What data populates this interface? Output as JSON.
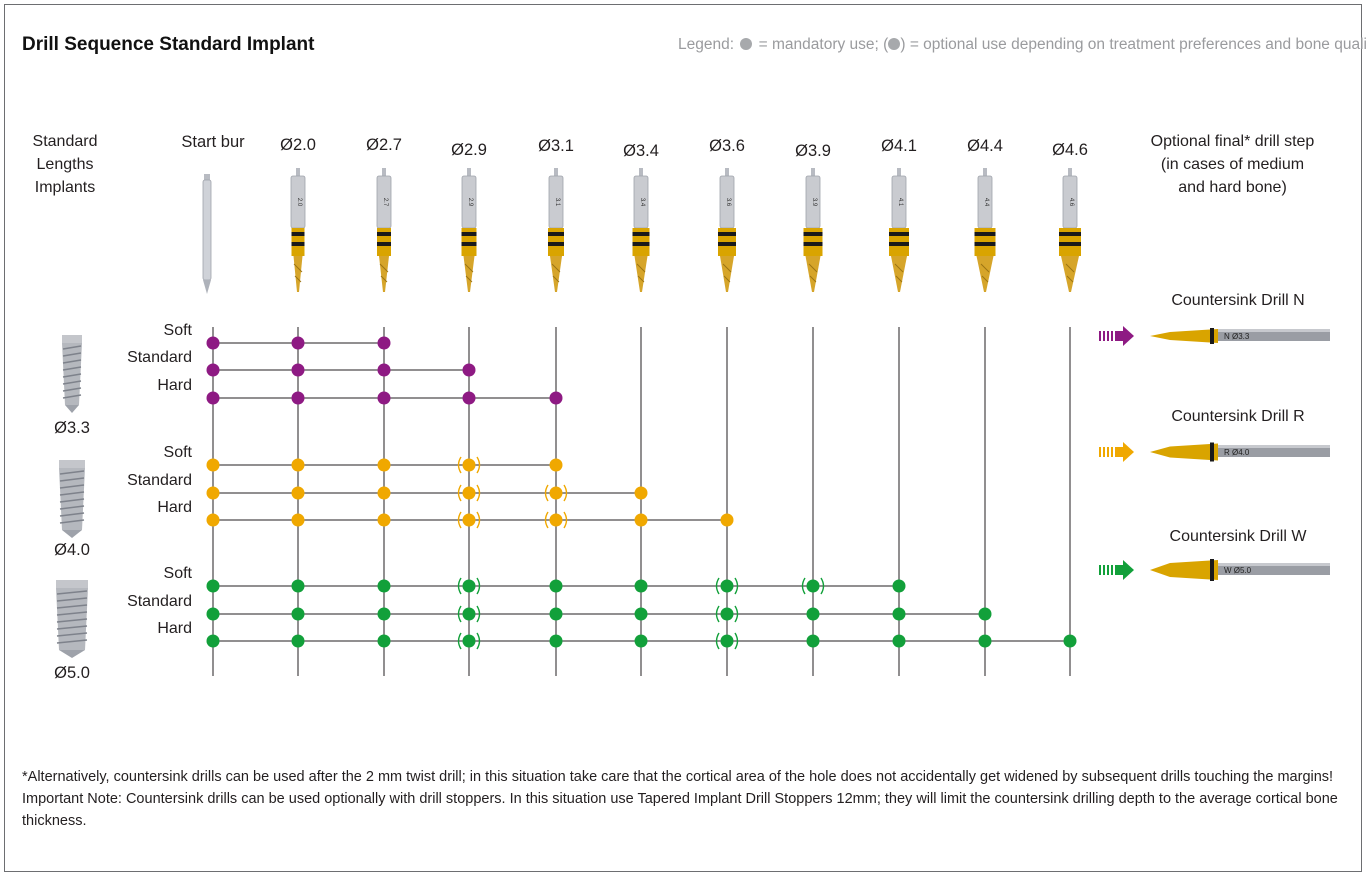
{
  "title": "Drill Sequence Standard Implant",
  "legend": {
    "prefix": "Legend:",
    "mandatory_text": "= mandatory use;",
    "optional_open": "(",
    "optional_close": ")",
    "optional_text": "= optional use depending on treatment preferences and bone quality"
  },
  "row_header": [
    "Standard",
    "Lengths",
    "Implants"
  ],
  "final_header": [
    "Optional final* drill step",
    "(in cases of medium",
    "and hard bone)"
  ],
  "columns": [
    "Start bur",
    "Ø2.0",
    "Ø2.7",
    "Ø2.9",
    "Ø3.1",
    "Ø3.4",
    "Ø3.6",
    "Ø3.9",
    "Ø4.1",
    "Ø4.4",
    "Ø4.6"
  ],
  "drill_labels": [
    "2.0",
    "2.7",
    "2.9",
    "3.1",
    "3.4",
    "3.6",
    "3.9",
    "4.1",
    "4.4",
    "4.6"
  ],
  "bone_types": [
    "Soft",
    "Standard",
    "Hard"
  ],
  "colors": {
    "purple": "#8e1a83",
    "orange": "#f0a800",
    "green": "#12a03a",
    "line": "#231f20",
    "legend_gray": "#a7a9ac",
    "drill_gold": "#d9a400",
    "drill_silver": "#c9cbd0"
  },
  "groups": [
    {
      "implant": "Ø3.3",
      "color": "purple",
      "countersink": "Countersink Drill N",
      "countersink_mark": "N Ø3.3",
      "rows": [
        {
          "bone": "Soft",
          "steps": [
            "M",
            "M",
            "M",
            "-",
            "-",
            "-",
            "-",
            "-",
            "-",
            "-",
            "-"
          ]
        },
        {
          "bone": "Standard",
          "steps": [
            "M",
            "M",
            "M",
            "M",
            "-",
            "-",
            "-",
            "-",
            "-",
            "-",
            "-"
          ]
        },
        {
          "bone": "Hard",
          "steps": [
            "M",
            "M",
            "M",
            "M",
            "M",
            "-",
            "-",
            "-",
            "-",
            "-",
            "-"
          ]
        }
      ]
    },
    {
      "implant": "Ø4.0",
      "color": "orange",
      "countersink": "Countersink Drill R",
      "countersink_mark": "R Ø4.0",
      "rows": [
        {
          "bone": "Soft",
          "steps": [
            "M",
            "M",
            "M",
            "O",
            "M",
            "-",
            "-",
            "-",
            "-",
            "-",
            "-"
          ]
        },
        {
          "bone": "Standard",
          "steps": [
            "M",
            "M",
            "M",
            "O",
            "O",
            "M",
            "-",
            "-",
            "-",
            "-",
            "-"
          ]
        },
        {
          "bone": "Hard",
          "steps": [
            "M",
            "M",
            "M",
            "O",
            "O",
            "M",
            "M",
            "-",
            "-",
            "-",
            "-"
          ]
        }
      ]
    },
    {
      "implant": "Ø5.0",
      "color": "green",
      "countersink": "Countersink Drill W",
      "countersink_mark": "W Ø5.0",
      "rows": [
        {
          "bone": "Soft",
          "steps": [
            "M",
            "M",
            "M",
            "O",
            "M",
            "M",
            "O",
            "O",
            "M",
            "-",
            "-"
          ]
        },
        {
          "bone": "Standard",
          "steps": [
            "M",
            "M",
            "M",
            "O",
            "M",
            "M",
            "O",
            "M",
            "M",
            "M",
            "-"
          ]
        },
        {
          "bone": "Hard",
          "steps": [
            "M",
            "M",
            "M",
            "O",
            "M",
            "M",
            "O",
            "M",
            "M",
            "M",
            "M"
          ]
        }
      ]
    }
  ],
  "footnotes": [
    "*Alternatively, countersink drills can be used after the 2 mm twist drill; in this situation take care that the cortical area of the hole does not accidentally get widened by subsequent drills touching the margins!",
    "Important Note: Countersink drills can be used optionally with drill stoppers. In this situation use Tapered Implant Drill Stoppers 12mm; they will limit the countersink drilling depth to the average cortical bone thickness."
  ]
}
